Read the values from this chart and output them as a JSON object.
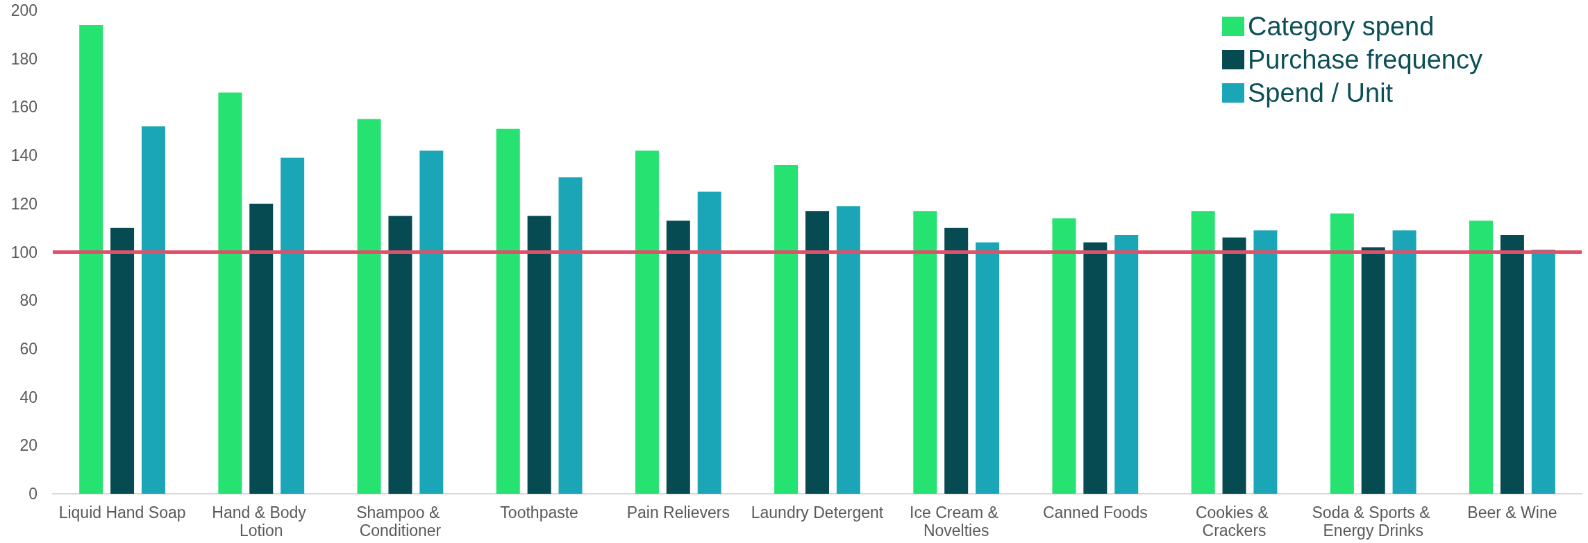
{
  "chart_data": {
    "type": "bar",
    "categories": [
      "Liquid Hand Soap",
      "Hand & Body Lotion",
      "Shampoo & Conditioner",
      "Toothpaste",
      "Pain Relievers",
      "Laundry Detergent",
      "Ice Cream & Novelties",
      "Canned Foods",
      "Cookies & Crackers",
      "Soda & Sports & Energy Drinks",
      "Beer & Wine"
    ],
    "series": [
      {
        "name": "Category spend",
        "color": "#26e270",
        "values": [
          194,
          166,
          155,
          151,
          142,
          136,
          117,
          114,
          117,
          116,
          113
        ]
      },
      {
        "name": "Purchase frequency",
        "color": "#064a52",
        "values": [
          110,
          120,
          115,
          115,
          113,
          117,
          110,
          104,
          106,
          102,
          107
        ]
      },
      {
        "name": "Spend / Unit",
        "color": "#1aa6b7",
        "values": [
          152,
          139,
          142,
          131,
          125,
          119,
          104,
          107,
          109,
          109,
          101
        ]
      }
    ],
    "ylim": [
      0,
      200
    ],
    "yticks": [
      0,
      20,
      40,
      60,
      80,
      100,
      120,
      140,
      160,
      180,
      200
    ],
    "grid": false,
    "legend": "top right",
    "ref_lines": [
      {
        "axis": "y",
        "value": 100,
        "color": "#e0506a"
      }
    ]
  }
}
